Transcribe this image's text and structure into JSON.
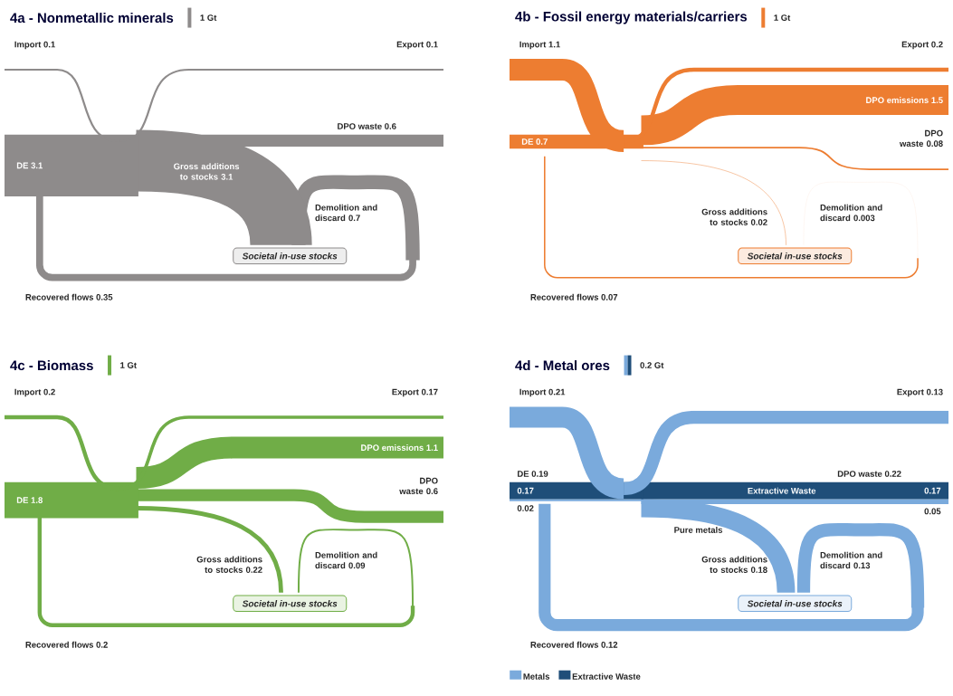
{
  "chart_data": [
    {
      "type": "other",
      "title": "4a - Nonmetallic minerals",
      "color": "#8e8b8b",
      "data_labels": true,
      "categories": [
        "Import",
        "Export",
        "DE",
        "DPO waste",
        "Gross additions to stocks",
        "Demolition and discard",
        "Recovered flows"
      ],
      "values": [
        0.1,
        0.1,
        3.1,
        0.6,
        3.1,
        0.7,
        0.35
      ],
      "annotations": [
        "Societal in-use stocks",
        "1 Gt"
      ]
    },
    {
      "type": "other",
      "title": "4b - Fossil energy materials/carriers",
      "color": "#ed7d31",
      "data_labels": true,
      "categories": [
        "Import",
        "Export",
        "DE",
        "DPO emissions",
        "DPO waste",
        "Gross additions to stocks",
        "Demolition and discard",
        "Recovered flows"
      ],
      "values": [
        1.1,
        0.2,
        0.7,
        1.5,
        0.08,
        0.02,
        0.003,
        0.07
      ],
      "annotations": [
        "Societal in-use stocks",
        "1 Gt"
      ]
    },
    {
      "type": "other",
      "title": "4c - Biomass",
      "color": "#70ad47",
      "data_labels": true,
      "categories": [
        "Import",
        "Export",
        "DE",
        "DPO emissions",
        "DPO waste",
        "Gross additions to stocks",
        "Demolition and discard",
        "Recovered flows"
      ],
      "values": [
        0.2,
        0.17,
        1.8,
        1.1,
        0.6,
        0.22,
        0.09,
        0.2
      ],
      "annotations": [
        "Societal in-use stocks",
        "1 Gt"
      ]
    },
    {
      "type": "other",
      "title": "4d - Metal ores",
      "data_labels": true,
      "legend": "bottom left",
      "categories": [
        "Import",
        "Export",
        "DE",
        "DPO waste",
        "Gross additions to stocks",
        "Demolition and discard",
        "Recovered flows"
      ],
      "series": [
        {
          "name": "Metals",
          "color": "#7aaadc",
          "values": [
            0.21,
            0.13,
            0.02,
            0.05,
            0.18,
            0.13,
            0.12
          ]
        },
        {
          "name": "Extractive Waste",
          "color": "#1f4e79",
          "values": [
            null,
            null,
            0.17,
            0.17,
            null,
            null,
            null
          ]
        }
      ],
      "totals": [
        null,
        null,
        "0.19",
        "0.22",
        null,
        null,
        null
      ],
      "annotations": [
        "Societal in-use stocks",
        "0.2 Gt",
        "Pure metals"
      ]
    }
  ]
}
